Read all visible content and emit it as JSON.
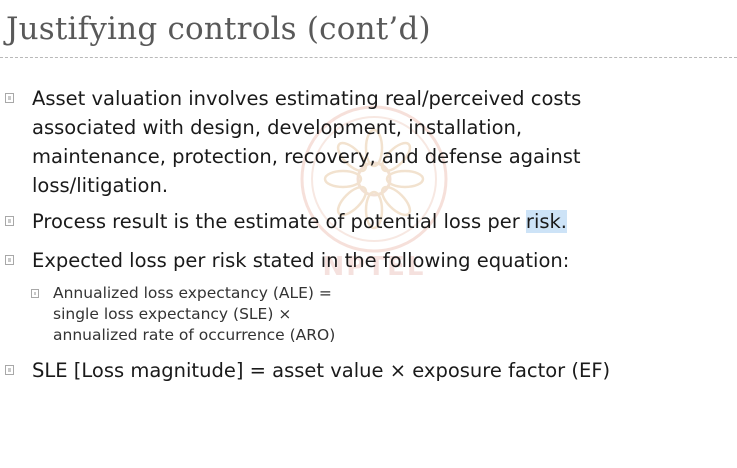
{
  "slide": {
    "title": "Justifying controls (cont’d)",
    "watermark_text": "NPTEL"
  },
  "bullets": [
    {
      "lines": [
        "Asset valuation involves estimating real/perceived costs",
        "associated with design, development, installation,",
        "maintenance, protection, recovery, and defense against",
        "loss/litigation."
      ]
    },
    {
      "text_before": "Process result is the estimate of potential loss per ",
      "highlighted": "risk.",
      "text_after": ""
    },
    {
      "text": "Expected loss per risk stated in the following equation:"
    },
    {
      "sub": true,
      "lines": [
        "Annualized loss expectancy (ALE) =",
        "single loss expectancy (SLE) ×",
        "annualized rate of occurrence (ARO)"
      ]
    },
    {
      "text": "SLE [Loss magnitude] = asset value × exposure factor (EF)"
    }
  ]
}
